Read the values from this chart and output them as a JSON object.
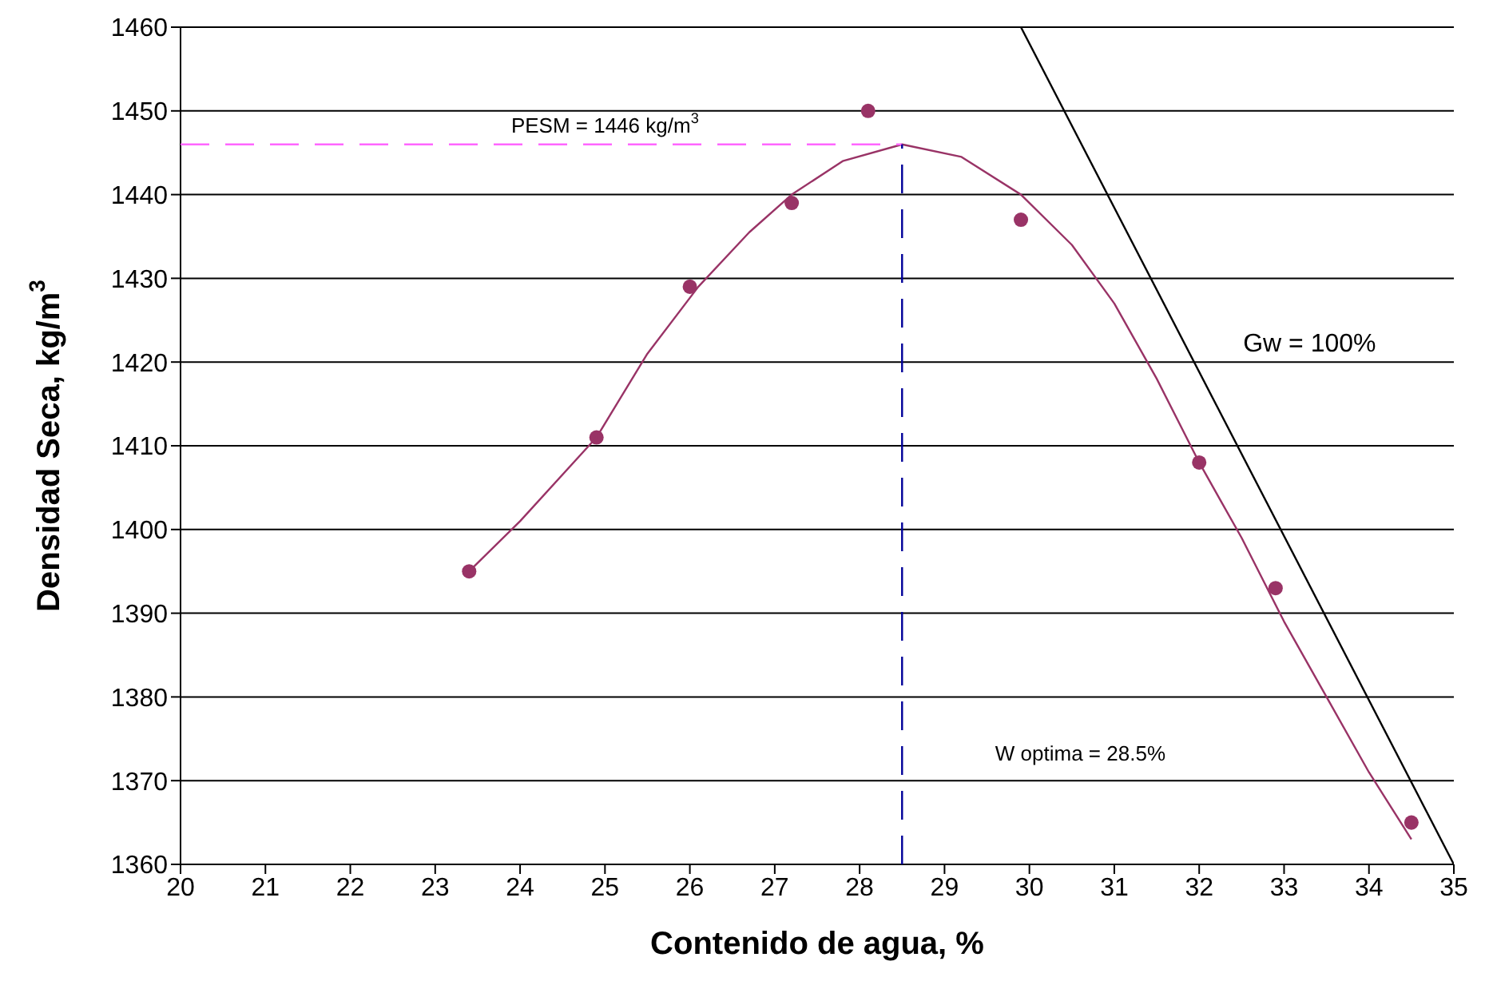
{
  "chart_data": {
    "type": "scatter",
    "xlabel": "Contenido de agua, %",
    "ylabel": "Densidad Seca, kg/m$^{3}$",
    "xlim": [
      20,
      35
    ],
    "xticks": [
      20,
      21,
      22,
      23,
      24,
      25,
      26,
      27,
      28,
      29,
      30,
      31,
      32,
      33,
      34,
      35
    ],
    "ylim": [
      1360,
      1460
    ],
    "yticks": [
      1360,
      1370,
      1380,
      1390,
      1400,
      1410,
      1420,
      1430,
      1440,
      1450,
      1460
    ],
    "grid": "y",
    "legend": false,
    "series": [
      {
        "color": "#993366",
        "marker": "circle",
        "x": [
          23.4,
          24.9,
          26.0,
          27.2,
          28.1,
          29.9,
          32.0,
          32.9,
          34.5
        ],
        "values": [
          1395,
          1411,
          1429,
          1439,
          1450,
          1437,
          1408,
          1393,
          1365
        ]
      },
      {
        "type": "line",
        "color": "#993366",
        "marker": "none",
        "x": [
          23.4,
          24,
          24.9,
          25.5,
          26.1,
          26.7,
          27.2,
          27.8,
          28.5,
          29.2,
          29.9,
          30.5,
          31,
          31.5,
          32,
          32.5,
          33,
          33.5,
          34,
          34.5
        ],
        "values": [
          1395,
          1401,
          1411,
          1421,
          1429,
          1435.5,
          1440,
          1444,
          1446,
          1444.5,
          1440,
          1434,
          1427,
          1418,
          1408,
          1399,
          1389,
          1380,
          1371,
          1363
        ]
      },
      {
        "type": "line",
        "color": "#000000",
        "marker": "none",
        "x": [
          29.9,
          35
        ],
        "values": [
          1460,
          1360
        ]
      },
      {
        "type": "line",
        "color": "#ff66ff",
        "marker": "none",
        "line_style": "dashed",
        "x": [
          20,
          28.5
        ],
        "values": [
          1446,
          1446
        ]
      },
      {
        "type": "line",
        "color": "#000099",
        "marker": "none",
        "line_style": "dashed",
        "x": [
          28.5,
          28.5
        ],
        "values": [
          1360,
          1446
        ]
      }
    ],
    "annotations": [
      "PESM = 1446 kg/m$^{3}$",
      "W optima = 28.5%",
      "Gw = 100%"
    ]
  }
}
